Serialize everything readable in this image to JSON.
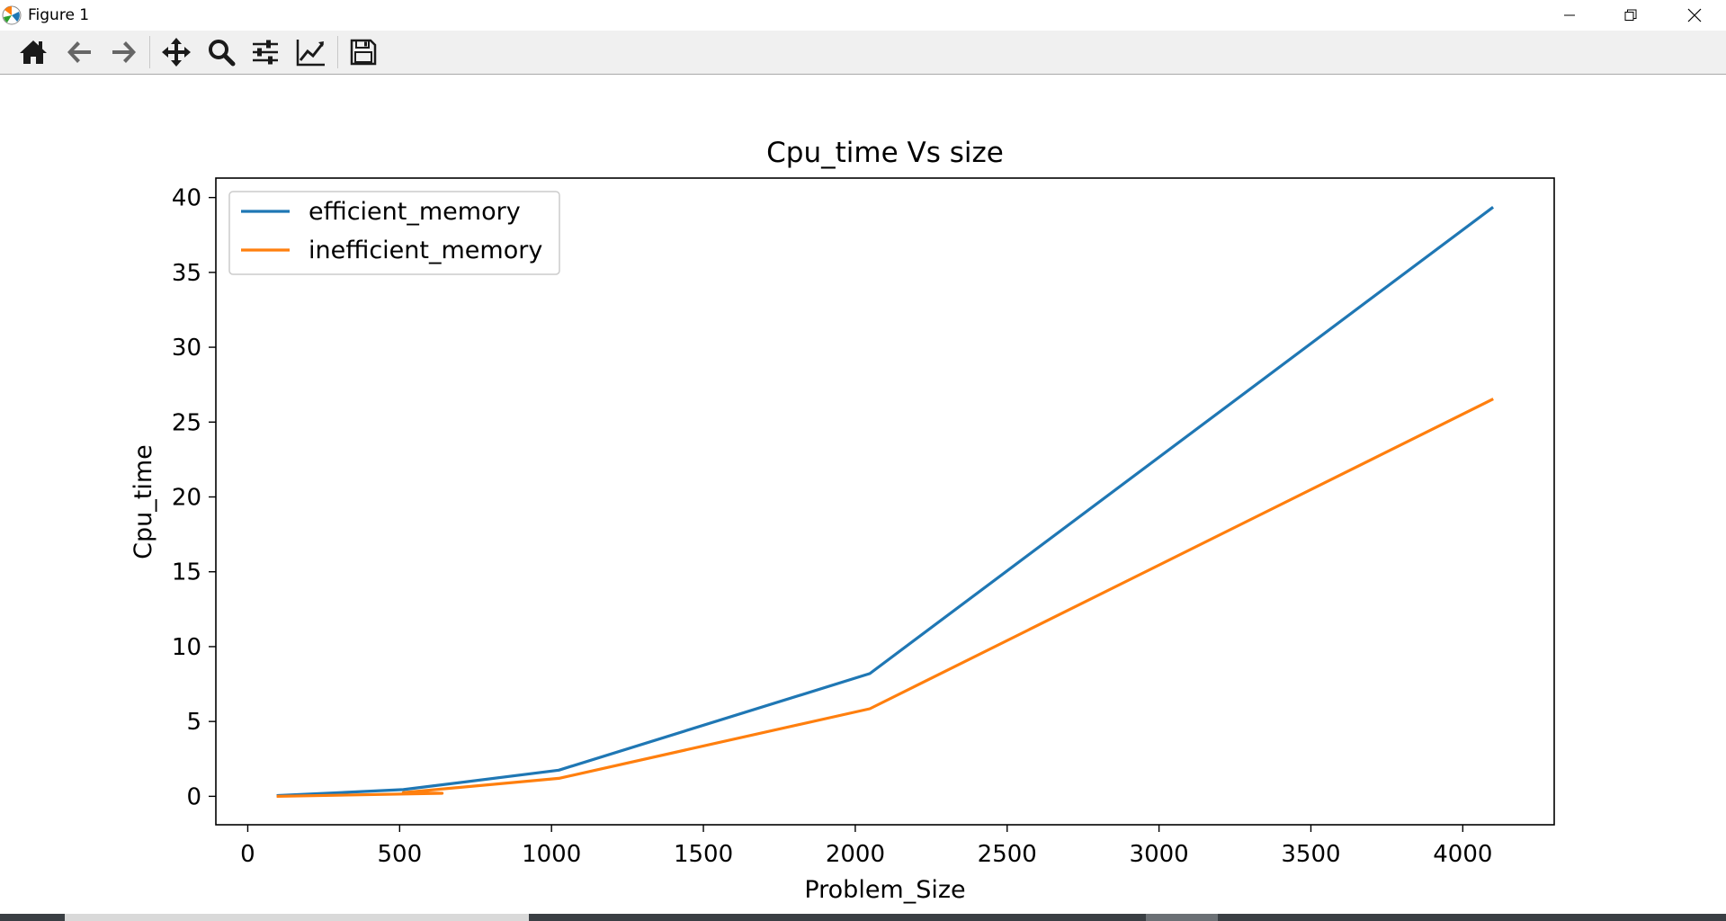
{
  "window": {
    "title": "Figure 1",
    "controls": [
      "minimize",
      "restore",
      "close"
    ]
  },
  "toolbar": {
    "buttons": [
      {
        "name": "home",
        "icon": "home-icon"
      },
      {
        "name": "back",
        "icon": "arrow-left-icon"
      },
      {
        "name": "forward",
        "icon": "arrow-right-icon"
      },
      {
        "name": "pan",
        "icon": "move-icon"
      },
      {
        "name": "zoom",
        "icon": "magnifier-icon"
      },
      {
        "name": "subplots",
        "icon": "sliders-icon"
      },
      {
        "name": "edit-axis",
        "icon": "line-chart-icon"
      },
      {
        "name": "save",
        "icon": "floppy-icon"
      }
    ]
  },
  "chart_data": {
    "type": "line",
    "title": "Cpu_time Vs size",
    "xlabel": "Problem_Size",
    "ylabel": "Cpu_time",
    "xlim": [
      -105,
      4301
    ],
    "ylim": [
      -1.9,
      41.3
    ],
    "xticks": [
      0,
      500,
      1000,
      1500,
      2000,
      2500,
      3000,
      3500,
      4000
    ],
    "yticks": [
      0,
      5,
      10,
      15,
      20,
      25,
      30,
      35,
      40
    ],
    "grid": false,
    "legend": "upper left",
    "series": [
      {
        "name": "efficient_memory",
        "color": "#1f77b4",
        "x": [
          100,
          512,
          1024,
          2048,
          4096
        ],
        "y": [
          0.05,
          0.45,
          1.75,
          8.2,
          39.3
        ]
      },
      {
        "name": "inefficient_memory",
        "color": "#ff7f0e",
        "x": [
          100,
          640,
          512,
          1024,
          2048,
          4096
        ],
        "y": [
          0.0,
          0.2,
          0.25,
          1.2,
          5.85,
          26.5
        ]
      }
    ]
  }
}
